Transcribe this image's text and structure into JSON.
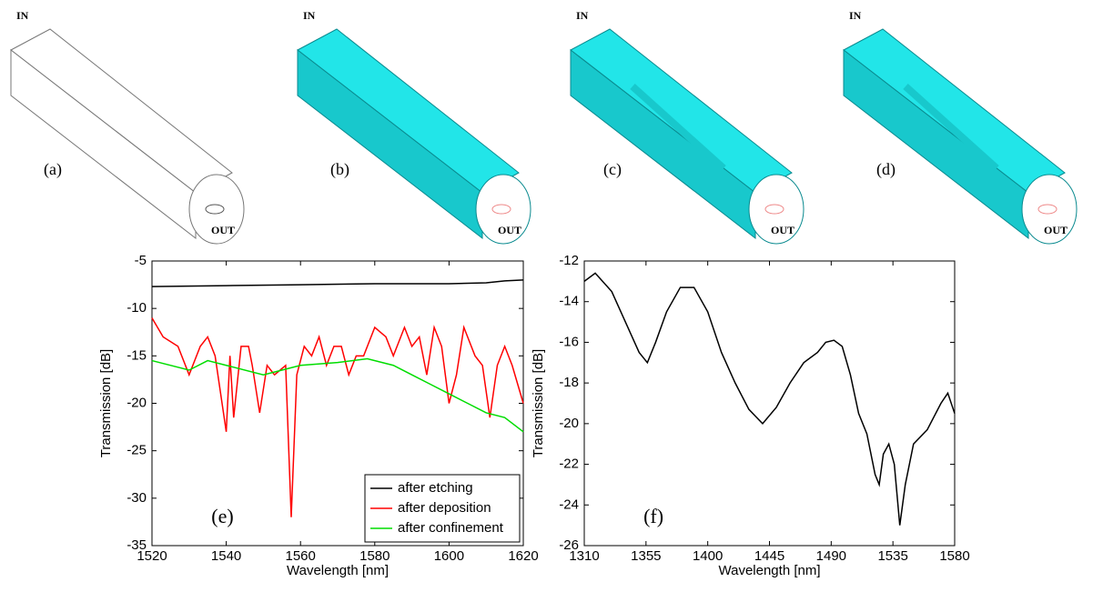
{
  "panels": [
    {
      "label": "(a)",
      "in": "IN",
      "out": "OUT"
    },
    {
      "label": "(b)",
      "in": "IN",
      "out": "OUT"
    },
    {
      "label": "(c)",
      "in": "IN",
      "out": "OUT"
    },
    {
      "label": "(d)",
      "in": "IN",
      "out": "OUT"
    }
  ],
  "chart_data": [
    {
      "type": "line",
      "annotation": "(e)",
      "x_label": "Wavelength [nm]",
      "y_label": "Transmission [dB]",
      "xlim": [
        1520,
        1620
      ],
      "xticks": [
        1520,
        1540,
        1560,
        1580,
        1600,
        1620
      ],
      "ylim": [
        -35,
        -5
      ],
      "yticks": [
        -35,
        -30,
        -25,
        -20,
        -15,
        -10,
        -5
      ],
      "legend": "lower right",
      "series": [
        {
          "name": "after etching",
          "color": "#000000",
          "x": [
            1520,
            1540,
            1560,
            1580,
            1600,
            1610,
            1615,
            1620
          ],
          "values": [
            -7.7,
            -7.6,
            -7.5,
            -7.4,
            -7.4,
            -7.3,
            -7.1,
            -7.0
          ]
        },
        {
          "name": "after deposition",
          "color": "#ff0000",
          "x": [
            1520,
            1523,
            1527,
            1530,
            1533,
            1535,
            1537,
            1540,
            1541,
            1542,
            1544,
            1546,
            1547,
            1549,
            1551,
            1553,
            1556,
            1557.5,
            1559,
            1561,
            1563,
            1565,
            1567,
            1569,
            1571,
            1573,
            1575,
            1577,
            1580,
            1583,
            1585,
            1588,
            1590,
            1592,
            1594,
            1596,
            1598,
            1600,
            1602,
            1604,
            1607,
            1609,
            1611,
            1613,
            1615,
            1617,
            1620
          ],
          "values": [
            -11,
            -13,
            -14,
            -17,
            -14,
            -13,
            -15,
            -23,
            -15,
            -21.5,
            -14,
            -14,
            -16,
            -21,
            -16,
            -17,
            -16,
            -32,
            -17,
            -14,
            -15,
            -13,
            -16,
            -14,
            -14,
            -17,
            -15,
            -15,
            -12,
            -13,
            -15,
            -12,
            -14,
            -13,
            -17,
            -12,
            -14,
            -20,
            -17,
            -12,
            -15,
            -16,
            -21.5,
            -16,
            -14,
            -16,
            -20
          ]
        },
        {
          "name": "after confinement",
          "color": "#00dd00",
          "x": [
            1520,
            1530,
            1535,
            1540,
            1550,
            1555,
            1560,
            1570,
            1578,
            1585,
            1590,
            1595,
            1600,
            1605,
            1610,
            1615,
            1620
          ],
          "values": [
            -15.5,
            -16.5,
            -15.5,
            -16,
            -17,
            -16.5,
            -16,
            -15.7,
            -15.3,
            -16,
            -17,
            -18,
            -19,
            -20,
            -21,
            -21.5,
            -23
          ]
        }
      ]
    },
    {
      "type": "line",
      "annotation": "(f)",
      "x_label": "Wavelength [nm]",
      "y_label": "Transmission [dB]",
      "xlim": [
        1310,
        1580
      ],
      "xticks": [
        1310,
        1355,
        1400,
        1445,
        1490,
        1535,
        1580
      ],
      "ylim": [
        -26,
        -12
      ],
      "yticks": [
        -26,
        -24,
        -22,
        -20,
        -18,
        -16,
        -14,
        -12
      ],
      "series": [
        {
          "color": "#000000",
          "x": [
            1310,
            1318,
            1330,
            1340,
            1350,
            1356,
            1362,
            1370,
            1380,
            1390,
            1400,
            1410,
            1420,
            1430,
            1440,
            1450,
            1460,
            1470,
            1480,
            1486,
            1492,
            1498,
            1504,
            1510,
            1516,
            1522,
            1525,
            1528,
            1532,
            1536,
            1540,
            1544,
            1550,
            1560,
            1570,
            1575,
            1580
          ],
          "values": [
            -13,
            -12.6,
            -13.5,
            -15,
            -16.5,
            -17,
            -16,
            -14.5,
            -13.3,
            -13.3,
            -14.5,
            -16.5,
            -18,
            -19.3,
            -20,
            -19.2,
            -18,
            -17,
            -16.5,
            -16,
            -15.9,
            -16.2,
            -17.6,
            -19.5,
            -20.5,
            -22.5,
            -23,
            -21.5,
            -21,
            -22,
            -25,
            -23,
            -21,
            -20.3,
            -19,
            -18.5,
            -19.5
          ]
        }
      ]
    }
  ]
}
